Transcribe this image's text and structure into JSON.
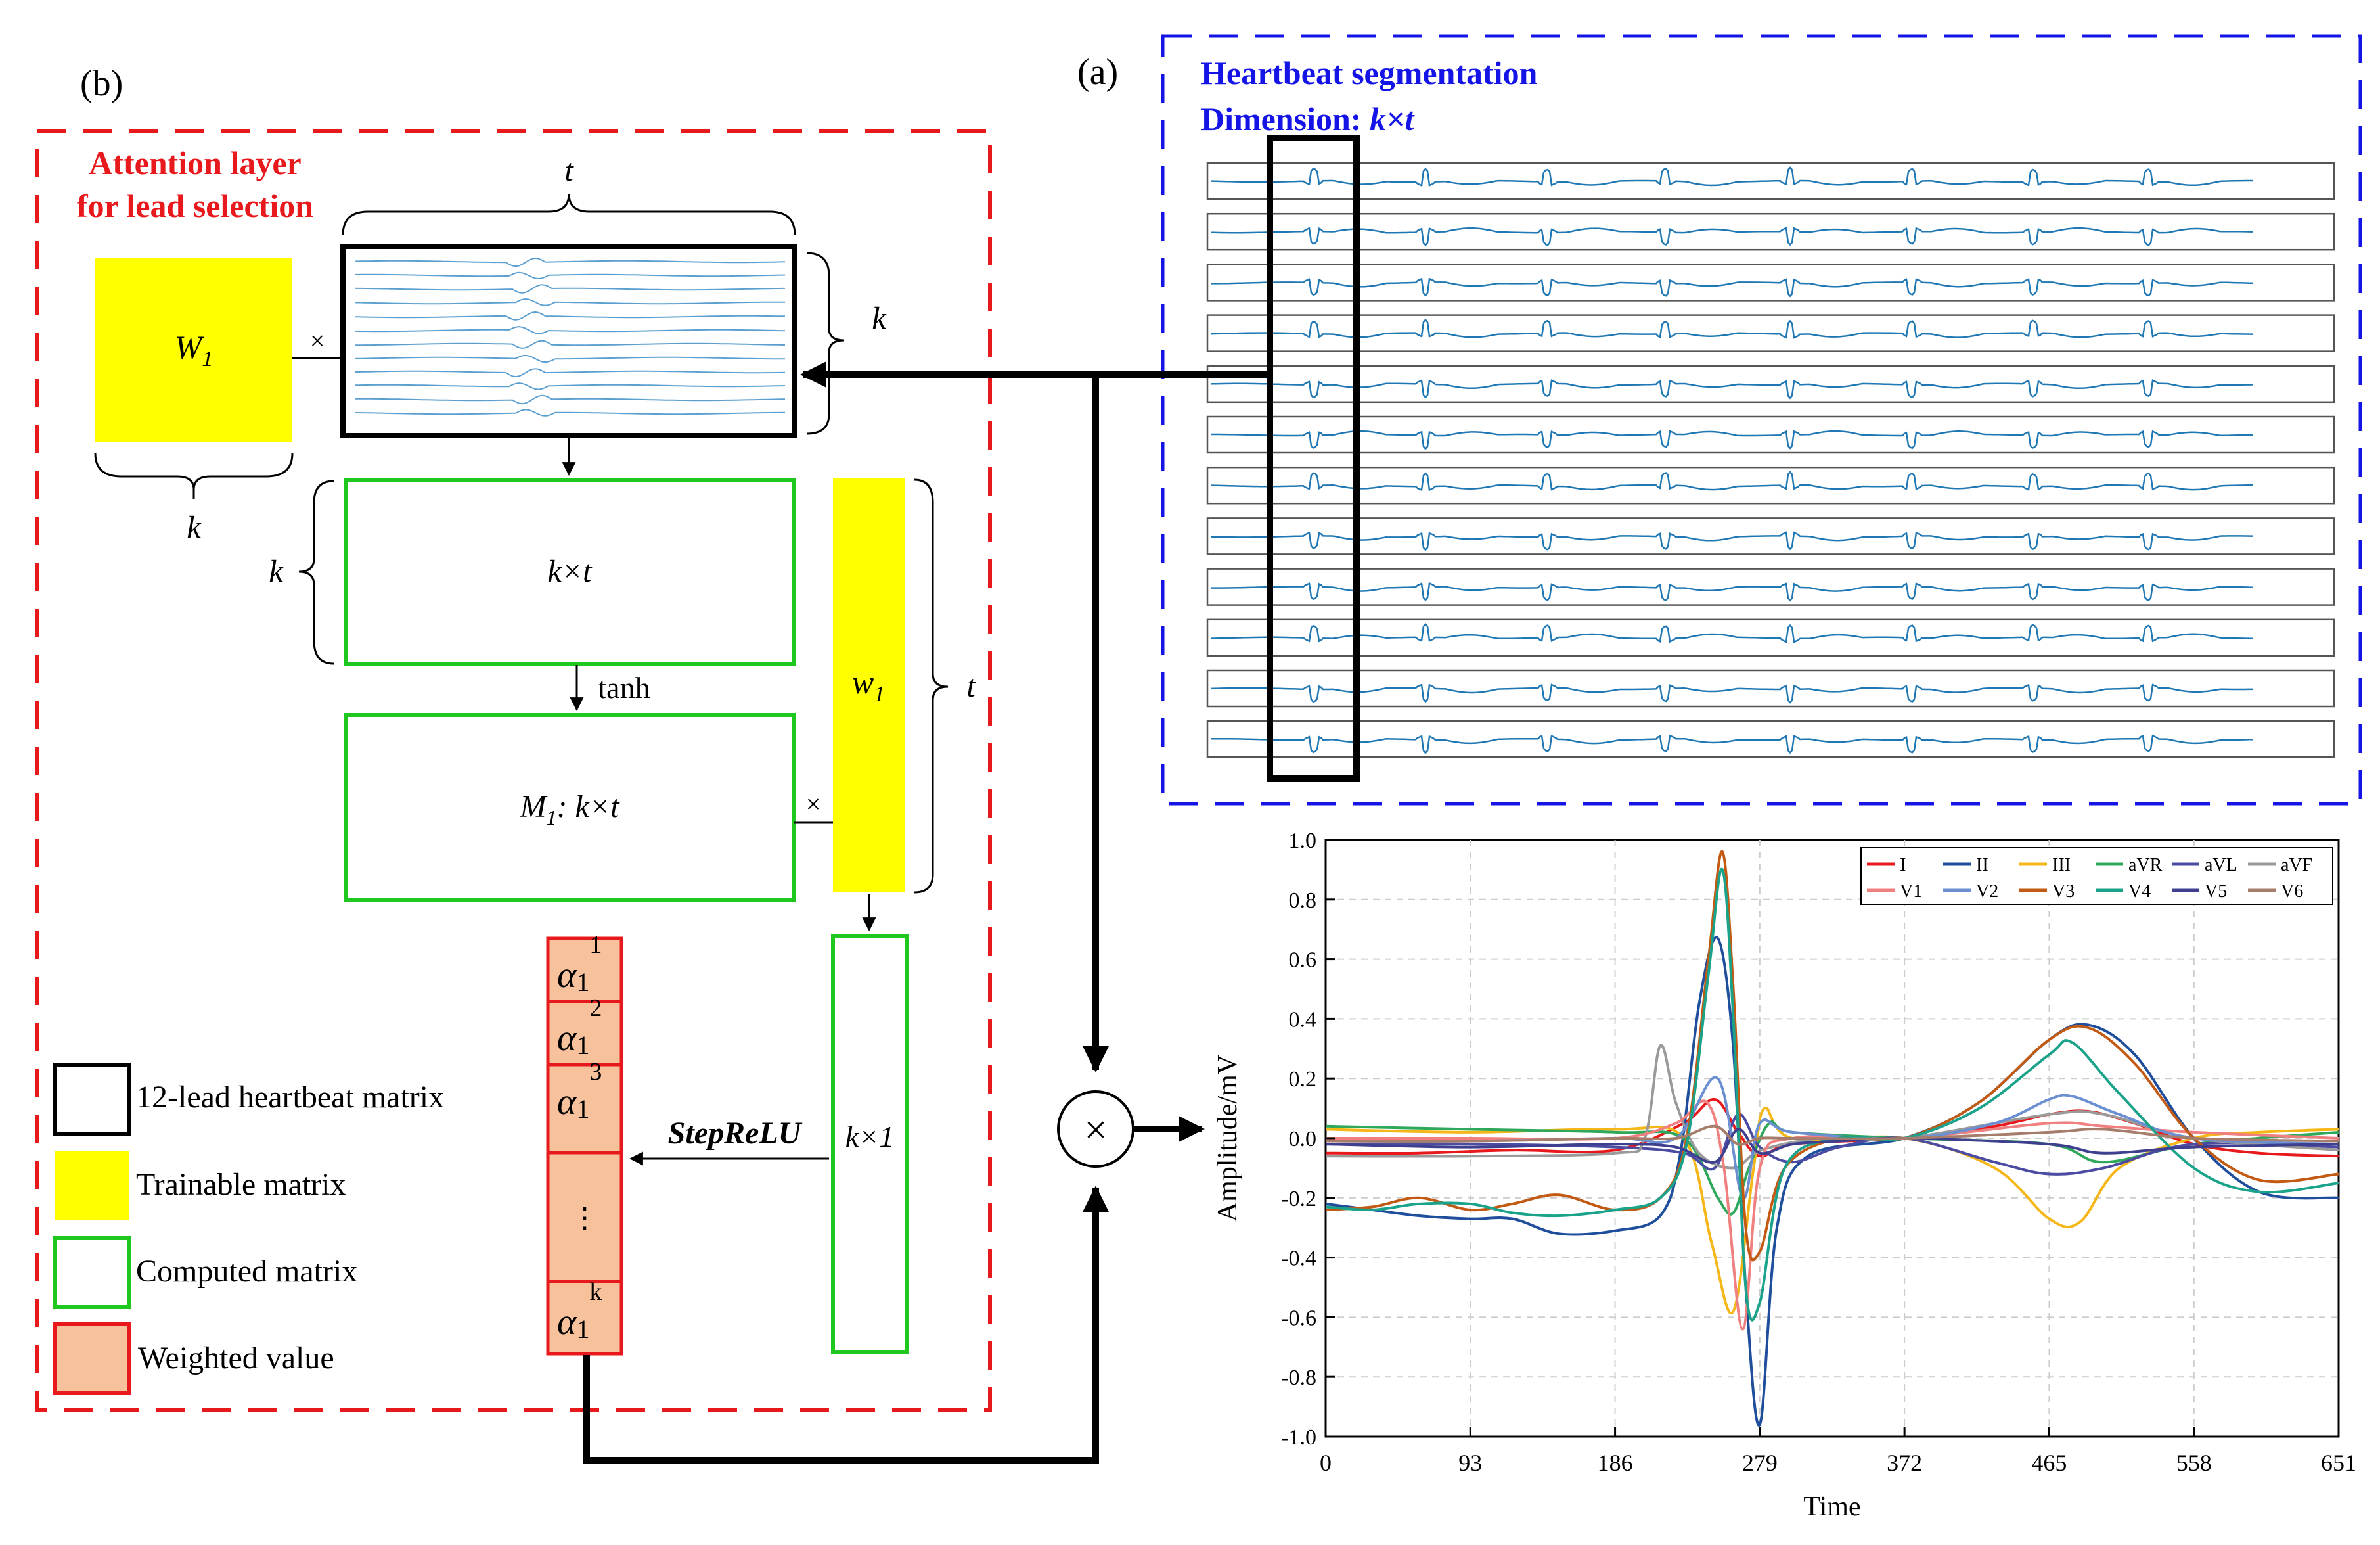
{
  "labels": {
    "panel_a": "(a)",
    "panel_b": "(b)",
    "seg_title": "Heartbeat segmentation",
    "seg_dimension_prefix": "Dimension: ",
    "seg_dimension_value": "k×t",
    "attention_line1": "Attention layer",
    "attention_line2": "for lead selection",
    "W1_main": "W",
    "W1_sub": "1",
    "w1_main": "w",
    "w1_sub": "1",
    "t_symbol": "t",
    "k_symbol": "k",
    "times_symbol": "×",
    "kxt_box": "k×t",
    "M1_main": "M",
    "M1_sub": "1",
    "M1_rest": ": k×t",
    "tanh": "tanh",
    "k1_box": "k×1",
    "stepRelu": "StepReLU",
    "alpha_main": "α",
    "alpha_sub": "1",
    "alpha_sups": [
      "1",
      "2",
      "3",
      "k"
    ],
    "alpha_dots": "⋮",
    "otimes": "⊗"
  },
  "legend": [
    {
      "label": "12-lead heartbeat matrix",
      "fill": "#ffffff",
      "stroke": "#000000"
    },
    {
      "label": "Trainable matrix",
      "fill": "#ffff00",
      "stroke": "#ffff00"
    },
    {
      "label": "Computed matrix",
      "fill": "#ffffff",
      "stroke": "#1ec81e"
    },
    {
      "label": "Weighted value",
      "fill": "#f7c19b",
      "stroke": "#e8191c"
    }
  ],
  "colors": {
    "red": "#e8191c",
    "blue": "#1414e6",
    "green": "#1ec81e",
    "yellow": "#ffff00",
    "peach": "#f7c19b",
    "ecg": "#1f77b4",
    "ecg_light": "#5b9fd0"
  },
  "chart_data": {
    "type": "line",
    "title": "",
    "xlabel": "Time",
    "ylabel": "Amplitude/mV",
    "xlim": [
      0,
      651
    ],
    "ylim": [
      -1.0,
      1.0
    ],
    "xticks": [
      0,
      93,
      186,
      279,
      372,
      465,
      558,
      651
    ],
    "yticks": [
      "-1.0",
      "-0.8",
      "-0.6",
      "-0.4",
      "-0.2",
      "0.0",
      "0.2",
      "0.4",
      "0.6",
      "0.8",
      "1.0"
    ],
    "grid": true,
    "legend_position": "top-right",
    "series": [
      {
        "name": "I",
        "color": "#e8191c",
        "x": [
          0,
          60,
          120,
          186,
          230,
          250,
          265,
          279,
          300,
          372,
          430,
          465,
          490,
          520,
          558,
          600,
          651
        ],
        "y": [
          -0.05,
          -0.05,
          -0.04,
          -0.04,
          0.05,
          0.13,
          0.02,
          -0.06,
          -0.02,
          0.0,
          0.04,
          0.08,
          0.09,
          0.05,
          -0.02,
          -0.05,
          -0.06
        ]
      },
      {
        "name": "II",
        "color": "#1f4e9c",
        "x": [
          0,
          30,
          60,
          93,
          120,
          150,
          186,
          215,
          228,
          240,
          252,
          262,
          270,
          279,
          290,
          310,
          372,
          420,
          465,
          490,
          520,
          558,
          600,
          651
        ],
        "y": [
          -0.22,
          -0.24,
          -0.26,
          -0.27,
          -0.27,
          -0.32,
          -0.31,
          -0.26,
          -0.05,
          0.45,
          0.67,
          0.3,
          -0.5,
          -0.96,
          -0.3,
          -0.06,
          0.0,
          0.12,
          0.33,
          0.38,
          0.28,
          0.0,
          -0.18,
          -0.2
        ]
      },
      {
        "name": "III",
        "color": "#f5b617",
        "x": [
          0,
          93,
          186,
          230,
          248,
          262,
          275,
          282,
          300,
          372,
          430,
          465,
          485,
          510,
          558,
          600,
          651
        ],
        "y": [
          0.03,
          0.02,
          0.03,
          0.0,
          -0.35,
          -0.58,
          -0.1,
          0.1,
          0.0,
          0.0,
          -0.1,
          -0.27,
          -0.28,
          -0.1,
          0.0,
          0.02,
          0.03
        ]
      },
      {
        "name": "aVR",
        "color": "#2fa85b",
        "x": [
          0,
          93,
          186,
          230,
          252,
          262,
          272,
          285,
          300,
          372,
          465,
          500,
          558,
          651
        ],
        "y": [
          0.04,
          0.03,
          0.02,
          0.0,
          -0.2,
          -0.25,
          -0.1,
          0.05,
          0.02,
          0.0,
          -0.02,
          -0.08,
          -0.02,
          0.02
        ]
      },
      {
        "name": "aVL",
        "color": "#4b4ba3",
        "x": [
          0,
          93,
          186,
          230,
          250,
          265,
          279,
          300,
          330,
          372,
          430,
          465,
          500,
          558,
          651
        ],
        "y": [
          -0.02,
          -0.02,
          -0.03,
          -0.05,
          -0.1,
          0.08,
          -0.03,
          -0.08,
          -0.03,
          0.0,
          -0.08,
          -0.12,
          -0.1,
          -0.02,
          -0.03
        ]
      },
      {
        "name": "aVF",
        "color": "#9a9a9a",
        "x": [
          0,
          93,
          186,
          205,
          215,
          225,
          240,
          262,
          280,
          320,
          372,
          465,
          500,
          558,
          651
        ],
        "y": [
          -0.06,
          -0.06,
          -0.05,
          0.0,
          0.31,
          0.12,
          -0.05,
          -0.1,
          -0.04,
          0.0,
          0.0,
          0.08,
          0.08,
          0.0,
          -0.04
        ]
      },
      {
        "name": "V1",
        "color": "#f08080",
        "x": [
          0,
          93,
          186,
          225,
          245,
          256,
          268,
          279,
          300,
          372,
          465,
          500,
          558,
          651
        ],
        "y": [
          0.0,
          0.0,
          0.0,
          0.05,
          0.12,
          -0.1,
          -0.64,
          -0.1,
          0.0,
          0.0,
          0.05,
          0.04,
          0.02,
          0.0
        ]
      },
      {
        "name": "V2",
        "color": "#6b8fd1",
        "x": [
          0,
          93,
          186,
          225,
          252,
          268,
          279,
          300,
          372,
          430,
          465,
          480,
          510,
          558,
          651
        ],
        "y": [
          -0.01,
          -0.01,
          0.0,
          0.0,
          0.2,
          -0.2,
          0.05,
          0.02,
          0.0,
          0.05,
          0.13,
          0.14,
          0.08,
          0.0,
          -0.02
        ]
      },
      {
        "name": "V3",
        "color": "#c35a13",
        "x": [
          0,
          30,
          60,
          93,
          120,
          150,
          186,
          215,
          232,
          246,
          255,
          262,
          270,
          279,
          295,
          330,
          372,
          420,
          465,
          490,
          520,
          558,
          600,
          651
        ],
        "y": [
          -0.24,
          -0.23,
          -0.2,
          -0.24,
          -0.22,
          -0.19,
          -0.24,
          -0.2,
          0.0,
          0.6,
          0.96,
          0.5,
          -0.3,
          -0.38,
          -0.1,
          0.0,
          0.0,
          0.12,
          0.33,
          0.37,
          0.25,
          0.0,
          -0.14,
          -0.12
        ]
      },
      {
        "name": "V4",
        "color": "#1aa38a",
        "x": [
          0,
          30,
          60,
          93,
          120,
          150,
          186,
          215,
          232,
          246,
          255,
          262,
          270,
          279,
          295,
          330,
          372,
          420,
          465,
          480,
          510,
          558,
          600,
          651
        ],
        "y": [
          -0.23,
          -0.24,
          -0.22,
          -0.22,
          -0.25,
          -0.26,
          -0.24,
          -0.2,
          -0.02,
          0.55,
          0.9,
          0.4,
          -0.5,
          -0.55,
          -0.1,
          0.0,
          0.0,
          0.1,
          0.28,
          0.32,
          0.15,
          -0.1,
          -0.18,
          -0.15
        ]
      },
      {
        "name": "V5",
        "color": "#3f3f8f",
        "x": [
          0,
          93,
          186,
          225,
          250,
          265,
          279,
          300,
          330,
          372,
          465,
          500,
          558,
          651
        ],
        "y": [
          -0.02,
          -0.03,
          -0.02,
          -0.03,
          -0.08,
          0.03,
          -0.05,
          -0.02,
          -0.01,
          0.0,
          -0.02,
          -0.05,
          -0.03,
          -0.02
        ]
      },
      {
        "name": "V6",
        "color": "#a67c6b",
        "x": [
          0,
          93,
          186,
          225,
          250,
          265,
          279,
          300,
          372,
          465,
          500,
          558,
          651
        ],
        "y": [
          -0.01,
          -0.01,
          0.0,
          0.0,
          0.04,
          -0.02,
          0.0,
          0.0,
          0.0,
          0.02,
          0.03,
          0.0,
          -0.01
        ]
      }
    ]
  }
}
